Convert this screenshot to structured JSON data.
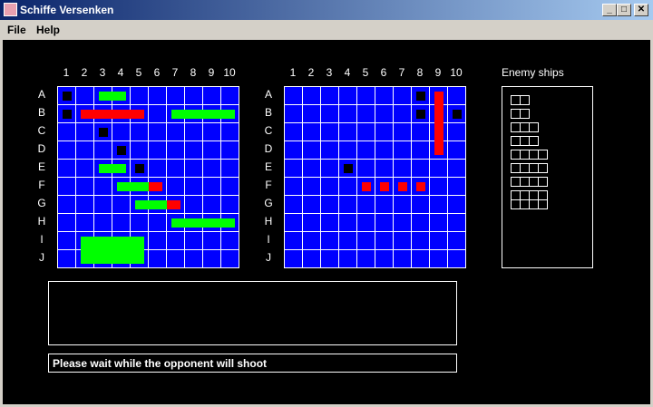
{
  "window": {
    "title": "Schiffe Versenken",
    "minimize": "_",
    "maximize": "□",
    "close": "✕"
  },
  "menu": [
    {
      "label": "File"
    },
    {
      "label": "Help"
    }
  ],
  "columns": [
    "1",
    "2",
    "3",
    "4",
    "5",
    "6",
    "7",
    "8",
    "9",
    "10"
  ],
  "rows": [
    "A",
    "B",
    "C",
    "D",
    "E",
    "F",
    "G",
    "H",
    "I",
    "J"
  ],
  "colors": {
    "water": "#0000ff",
    "ship": "#00ff00",
    "hit": "#ff0000",
    "miss": "#000000",
    "grid": "#ffffff"
  },
  "own_board": {
    "misses": [
      "A1",
      "B1",
      "C3",
      "D4",
      "E5"
    ],
    "ships": [
      {
        "from": "A3",
        "to": "A4",
        "hits": []
      },
      {
        "from": "B2",
        "to": "B5",
        "hits": [
          "B2",
          "B3",
          "B4",
          "B5"
        ]
      },
      {
        "from": "B7",
        "to": "B10",
        "hits": []
      },
      {
        "from": "E3",
        "to": "E4",
        "hits": []
      },
      {
        "from": "F4",
        "to": "F6",
        "hits": [
          "F6"
        ]
      },
      {
        "from": "G5",
        "to": "G7",
        "hits": [
          "G7"
        ]
      },
      {
        "from": "H7",
        "to": "H10",
        "hits": []
      },
      {
        "from": "I2",
        "to": "J5",
        "hits": []
      }
    ]
  },
  "enemy_board": {
    "misses": [
      "A8",
      "B8",
      "B10",
      "E4"
    ],
    "sunk": [
      {
        "from": "A9",
        "to": "D9"
      }
    ],
    "hits": [
      "F5",
      "F6",
      "F7",
      "F8"
    ]
  },
  "enemy_ships": {
    "title": "Enemy ships",
    "ships": [
      [
        1,
        2
      ],
      [
        1,
        2
      ],
      [
        1,
        3
      ],
      [
        1,
        3
      ],
      [
        1,
        4
      ],
      [
        1,
        4
      ],
      [
        1,
        4
      ],
      [
        2,
        4
      ]
    ]
  },
  "log": {
    "text": ""
  },
  "status": "Please wait while the opponent will shoot"
}
